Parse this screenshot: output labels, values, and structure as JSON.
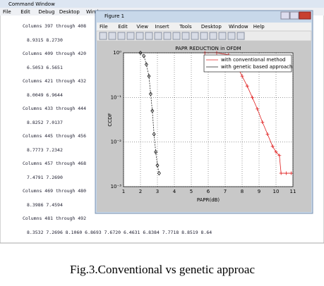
{
  "command_window": {
    "title": "Command Window",
    "menu": [
      "File",
      "Edit",
      "Debug",
      "Desktop",
      "Windo"
    ],
    "rows": [
      {
        "header": "Columns 397 through 408",
        "values": "8.9315    8.2730"
      },
      {
        "header": "Columns 409 through 420",
        "values": "6.5053    6.5651"
      },
      {
        "header": "Columns 421 through 432",
        "values": "8.0049    6.9644"
      },
      {
        "header": "Columns 433 through 444",
        "values": "8.8252    7.0137"
      },
      {
        "header": "Columns 445 through 456",
        "values": "8.7773    7.2342"
      },
      {
        "header": "Columns 457 through 468",
        "values": "7.4791    7.2690"
      },
      {
        "header": "Columns 469 through 480",
        "values": "8.3986    7.4594"
      },
      {
        "header": "Columns 481 through 492",
        "values": "8.3532    7.2696    8.1060    6.8693    7.6720    6.4631    6.8384    7.7718    8.8519    8.64"
      }
    ]
  },
  "figure_window": {
    "title": "Figure 1",
    "menu": [
      "File",
      "Edit",
      "View",
      "Insert",
      "Tools",
      "Desktop",
      "Window",
      "Help"
    ]
  },
  "chart_data": {
    "type": "line",
    "title": "PAPR REDUCTION in OFDM",
    "x_label": "PAPR(dB)",
    "y_label": "CCDF",
    "xlim": [
      1,
      11
    ],
    "xticks": [
      1,
      2,
      3,
      4,
      5,
      6,
      7,
      8,
      9,
      10,
      11
    ],
    "ylim": [
      0.001,
      1
    ],
    "log_y": true,
    "grid": true,
    "legend": "upper right",
    "yticks": [
      {
        "value": 0.001,
        "label": "10⁻³"
      },
      {
        "value": 0.01,
        "label": "10⁻²"
      },
      {
        "value": 0.1,
        "label": "10⁻¹"
      },
      {
        "value": 1,
        "label": "10⁰"
      }
    ],
    "series": [
      {
        "name": "with conventional method",
        "color": "#e02020",
        "marker": "plus",
        "x": [
          5.8,
          6.5,
          7.2,
          7.6,
          8.0,
          8.3,
          8.6,
          8.9,
          9.2,
          9.5,
          9.8,
          10.0,
          10.2,
          10.3,
          10.6,
          10.9
        ],
        "values": [
          1,
          1,
          0.9,
          0.6,
          0.3,
          0.18,
          0.1,
          0.055,
          0.028,
          0.015,
          0.008,
          0.006,
          0.005,
          0.002,
          0.002,
          0.002
        ]
      },
      {
        "name": "with genetic based approach",
        "color": "#202020",
        "marker": "diamond",
        "x": [
          2.0,
          2.2,
          2.35,
          2.5,
          2.6,
          2.7,
          2.8,
          2.9,
          3.0,
          3.1
        ],
        "values": [
          1,
          0.85,
          0.55,
          0.3,
          0.12,
          0.05,
          0.015,
          0.006,
          0.003,
          0.002
        ]
      }
    ]
  },
  "caption": "Fig.3.Conventional vs genetic approac"
}
